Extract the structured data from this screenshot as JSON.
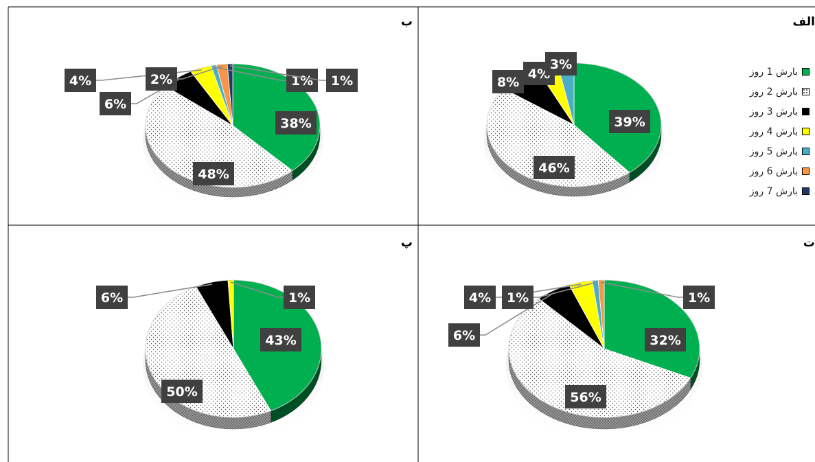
{
  "colors": {
    "green": "#00b050",
    "dotted": "#ffffff",
    "black": "#000000",
    "yellow": "#ffff00",
    "teal": "#4bacc6",
    "orange": "#f79646",
    "navy": "#1f3864",
    "label_bg": "#404040",
    "label_text": "#ffffff",
    "leader_line": "#8c8c8c"
  },
  "legend": {
    "items": [
      {
        "label": "بارش 1 روز",
        "color": "#00b050",
        "pattern": "solid"
      },
      {
        "label": "بارش 2 روز",
        "color": "#ffffff",
        "pattern": "dotted"
      },
      {
        "label": "بارش 3 روز",
        "color": "#000000",
        "pattern": "solid"
      },
      {
        "label": "بارش 4 روز",
        "color": "#ffff00",
        "pattern": "solid"
      },
      {
        "label": "بارش 5 روز",
        "color": "#4bacc6",
        "pattern": "solid"
      },
      {
        "label": "بارش 6 روز",
        "color": "#f79646",
        "pattern": "solid"
      },
      {
        "label": "بارش 7 روز",
        "color": "#1f3864",
        "pattern": "solid"
      }
    ]
  },
  "chart_data": [
    {
      "panel": "الف",
      "type": "pie",
      "categories": [
        "بارش 1 روز",
        "بارش 2 روز",
        "بارش 3 روز",
        "بارش 4 روز",
        "بارش 5 روز"
      ],
      "values": [
        39,
        46,
        8,
        4,
        3
      ],
      "labels": [
        "39%",
        "46%",
        "8%",
        "4%",
        "3%"
      ]
    },
    {
      "panel": "ب",
      "type": "pie",
      "categories": [
        "بارش 1 روز",
        "بارش 2 روز",
        "بارش 3 روز",
        "بارش 4 روز",
        "بارش 5 روز",
        "بارش 6 روز",
        "بارش 7 روز"
      ],
      "values": [
        38,
        48,
        6,
        4,
        1,
        2,
        1
      ],
      "labels": [
        "38%",
        "48%",
        "6%",
        "4%",
        "1%",
        "2%",
        "1%"
      ]
    },
    {
      "panel": "ت",
      "type": "pie",
      "categories": [
        "بارش 1 روز",
        "بارش 2 روز",
        "بارش 3 روز",
        "بارش 4 روز",
        "بارش 5 روز",
        "بارش 6 روز"
      ],
      "values": [
        32,
        56,
        6,
        4,
        1,
        1
      ],
      "labels": [
        "32%",
        "56%",
        "6%",
        "4%",
        "1%",
        "1%"
      ]
    },
    {
      "panel": "پ",
      "type": "pie",
      "categories": [
        "بارش 1 روز",
        "بارش 2 روز",
        "بارش 3 روز",
        "بارش 4 روز"
      ],
      "values": [
        43,
        50,
        6,
        1
      ],
      "labels": [
        "43%",
        "50%",
        "6%",
        "1%"
      ]
    }
  ]
}
